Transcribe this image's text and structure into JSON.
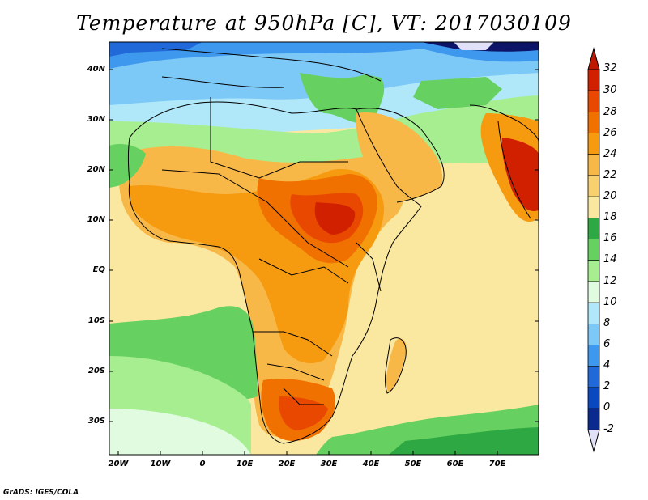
{
  "title": "Temperature at 950hPa [C], VT: 2017030109",
  "footer": "GrADS: IGES/COLA",
  "lat_labels": [
    "40N",
    "30N",
    "20N",
    "10N",
    "EQ",
    "10S",
    "20S",
    "30S"
  ],
  "lon_labels": [
    "20W",
    "10W",
    "0",
    "10E",
    "20E",
    "30E",
    "40E",
    "50E",
    "60E",
    "70E"
  ],
  "colorbar": {
    "labels": [
      "32",
      "30",
      "28",
      "26",
      "24",
      "22",
      "20",
      "18",
      "16",
      "14",
      "12",
      "10",
      "8",
      "6",
      "4",
      "2",
      "0",
      "-2"
    ],
    "colors": [
      "#d02000",
      "#e84800",
      "#f07000",
      "#f69a10",
      "#f8b848",
      "#f8d070",
      "#fbe8a0",
      "#2ea842",
      "#66d060",
      "#a6ee90",
      "#e0fbe0",
      "#b0e8fa",
      "#7cc8f6",
      "#3e98ee",
      "#2168d8",
      "#0a48c0",
      "#0a2a8e",
      "#0c1468"
    ],
    "top_arrow_color": "#c01800",
    "bottom_arrow_color": "#e0e0f8"
  }
}
